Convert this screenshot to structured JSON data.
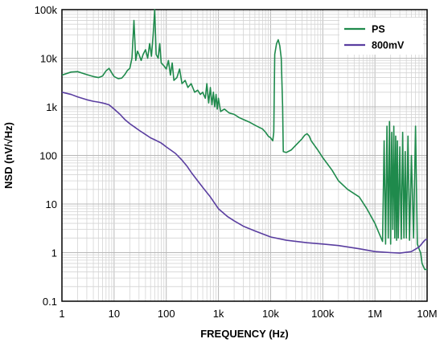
{
  "chart_data": {
    "type": "line",
    "title": "",
    "xlabel": "FREQUENCY (Hz)",
    "ylabel": "NSD (nV/√Hz)",
    "x_scale": "log",
    "y_scale": "log",
    "xlim": [
      1,
      10000000
    ],
    "ylim": [
      0.1,
      100000
    ],
    "grid": true,
    "legend_position": "top-right",
    "x_ticks": [
      {
        "value": 1,
        "label": "1"
      },
      {
        "value": 10,
        "label": "10"
      },
      {
        "value": 100,
        "label": "100"
      },
      {
        "value": 1000,
        "label": "1k"
      },
      {
        "value": 10000,
        "label": "10k"
      },
      {
        "value": 100000,
        "label": "100k"
      },
      {
        "value": 1000000,
        "label": "1M"
      },
      {
        "value": 10000000,
        "label": "10M"
      }
    ],
    "y_ticks": [
      {
        "value": 0.1,
        "label": "0.1"
      },
      {
        "value": 1,
        "label": "1"
      },
      {
        "value": 10,
        "label": "10"
      },
      {
        "value": 100,
        "label": "100"
      },
      {
        "value": 1000,
        "label": "1k"
      },
      {
        "value": 10000,
        "label": "10k"
      },
      {
        "value": 100000,
        "label": "100k"
      }
    ],
    "series": [
      {
        "name": "PS",
        "color": "#1f8a4c",
        "points": [
          [
            1,
            4500
          ],
          [
            1.5,
            5200
          ],
          [
            2,
            5300
          ],
          [
            3,
            4600
          ],
          [
            4,
            4200
          ],
          [
            5,
            4000
          ],
          [
            6,
            4300
          ],
          [
            7,
            5500
          ],
          [
            8,
            6200
          ],
          [
            9,
            5000
          ],
          [
            10,
            4200
          ],
          [
            12,
            3800
          ],
          [
            14,
            3900
          ],
          [
            16,
            4600
          ],
          [
            18,
            5600
          ],
          [
            20,
            6200
          ],
          [
            22,
            10000
          ],
          [
            24,
            60000
          ],
          [
            26,
            9000
          ],
          [
            28,
            14000
          ],
          [
            30,
            12000
          ],
          [
            33,
            9000
          ],
          [
            36,
            12000
          ],
          [
            40,
            15000
          ],
          [
            44,
            10000
          ],
          [
            48,
            20000
          ],
          [
            52,
            11000
          ],
          [
            56,
            30000
          ],
          [
            60,
            100000
          ],
          [
            64,
            12000
          ],
          [
            70,
            10000
          ],
          [
            75,
            20000
          ],
          [
            80,
            8000
          ],
          [
            90,
            7000
          ],
          [
            100,
            6000
          ],
          [
            110,
            9000
          ],
          [
            120,
            4500
          ],
          [
            130,
            8000
          ],
          [
            140,
            3500
          ],
          [
            160,
            4000
          ],
          [
            180,
            6000
          ],
          [
            200,
            3000
          ],
          [
            230,
            3500
          ],
          [
            260,
            2500
          ],
          [
            300,
            3000
          ],
          [
            350,
            2000
          ],
          [
            400,
            2200
          ],
          [
            450,
            1800
          ],
          [
            500,
            2000
          ],
          [
            560,
            1500
          ],
          [
            600,
            3000
          ],
          [
            650,
            1200
          ],
          [
            700,
            2500
          ],
          [
            750,
            1100
          ],
          [
            800,
            2000
          ],
          [
            850,
            1000
          ],
          [
            900,
            1800
          ],
          [
            950,
            900
          ],
          [
            1000,
            1500
          ],
          [
            1100,
            800
          ],
          [
            1300,
            900
          ],
          [
            1600,
            750
          ],
          [
            2000,
            700
          ],
          [
            2500,
            600
          ],
          [
            3000,
            550
          ],
          [
            4000,
            480
          ],
          [
            5000,
            420
          ],
          [
            6000,
            380
          ],
          [
            7000,
            350
          ],
          [
            8000,
            300
          ],
          [
            9000,
            250
          ],
          [
            10000,
            230
          ],
          [
            11000,
            200
          ],
          [
            11500,
            300
          ],
          [
            12000,
            12000
          ],
          [
            13000,
            20000
          ],
          [
            14000,
            24000
          ],
          [
            15000,
            18000
          ],
          [
            16000,
            10000
          ],
          [
            17000,
            1000
          ],
          [
            17500,
            120
          ],
          [
            20000,
            115
          ],
          [
            25000,
            130
          ],
          [
            30000,
            160
          ],
          [
            40000,
            220
          ],
          [
            45000,
            260
          ],
          [
            50000,
            280
          ],
          [
            55000,
            250
          ],
          [
            60000,
            200
          ],
          [
            80000,
            130
          ],
          [
            100000,
            90
          ],
          [
            150000,
            50
          ],
          [
            200000,
            30
          ],
          [
            300000,
            20
          ],
          [
            500000,
            14
          ],
          [
            700000,
            8
          ],
          [
            1000000,
            4
          ],
          [
            1200000,
            2.5
          ],
          [
            1400000,
            1.7
          ],
          [
            1500000,
            200
          ],
          [
            1600000,
            1.5
          ],
          [
            1700000,
            400
          ],
          [
            1800000,
            2
          ],
          [
            1900000,
            500
          ],
          [
            2000000,
            1.5
          ],
          [
            2100000,
            300
          ],
          [
            2200000,
            3
          ],
          [
            2300000,
            400
          ],
          [
            2400000,
            2
          ],
          [
            2500000,
            250
          ],
          [
            2600000,
            1.8
          ],
          [
            2700000,
            200
          ],
          [
            2800000,
            2
          ],
          [
            3000000,
            150
          ],
          [
            3200000,
            1.9
          ],
          [
            3400000,
            300
          ],
          [
            3600000,
            2
          ],
          [
            3800000,
            120
          ],
          [
            4000000,
            2
          ],
          [
            4300000,
            250
          ],
          [
            4600000,
            1.8
          ],
          [
            5000000,
            100
          ],
          [
            5500000,
            2
          ],
          [
            6000000,
            400
          ],
          [
            6500000,
            1.5
          ],
          [
            7000000,
            1.2
          ],
          [
            7500000,
            1
          ],
          [
            8000000,
            0.6
          ],
          [
            9000000,
            0.45
          ],
          [
            10000000,
            0.45
          ]
        ]
      },
      {
        "name": "800mV",
        "color": "#5a3ea0",
        "points": [
          [
            1,
            2000
          ],
          [
            1.5,
            1800
          ],
          [
            2,
            1600
          ],
          [
            3,
            1400
          ],
          [
            4,
            1300
          ],
          [
            5,
            1250
          ],
          [
            6,
            1200
          ],
          [
            7,
            1150
          ],
          [
            8,
            1100
          ],
          [
            10,
            900
          ],
          [
            13,
            700
          ],
          [
            16,
            550
          ],
          [
            20,
            450
          ],
          [
            25,
            380
          ],
          [
            30,
            330
          ],
          [
            40,
            270
          ],
          [
            50,
            230
          ],
          [
            60,
            210
          ],
          [
            80,
            180
          ],
          [
            100,
            150
          ],
          [
            150,
            110
          ],
          [
            200,
            80
          ],
          [
            250,
            60
          ],
          [
            300,
            45
          ],
          [
            400,
            30
          ],
          [
            500,
            22
          ],
          [
            700,
            14
          ],
          [
            1000,
            8
          ],
          [
            1500,
            5.5
          ],
          [
            2000,
            4.5
          ],
          [
            3000,
            3.5
          ],
          [
            5000,
            2.8
          ],
          [
            10000,
            2.1
          ],
          [
            20000,
            1.8
          ],
          [
            50000,
            1.6
          ],
          [
            100000,
            1.5
          ],
          [
            200000,
            1.4
          ],
          [
            500000,
            1.2
          ],
          [
            1000000,
            1.05
          ],
          [
            2000000,
            1.0
          ],
          [
            3000000,
            0.98
          ],
          [
            5000000,
            1.05
          ],
          [
            7000000,
            1.3
          ],
          [
            9000000,
            1.8
          ],
          [
            10000000,
            1.9
          ]
        ]
      }
    ]
  }
}
